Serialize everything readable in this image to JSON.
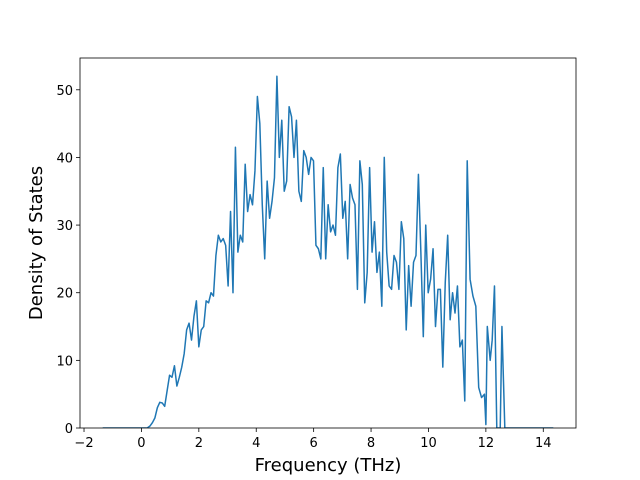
{
  "chart_data": {
    "type": "line",
    "xlabel": "Frequency (THz)",
    "ylabel": "Density of States",
    "color": "#1f77b4",
    "xlim": [
      -2.14,
      15.14
    ],
    "ylim": [
      0,
      54.7
    ],
    "xticks": [
      {
        "value": -2,
        "label": "−2"
      },
      0,
      2,
      4,
      6,
      8,
      10,
      12,
      14
    ],
    "yticks": [
      0,
      10,
      20,
      30,
      40,
      50
    ],
    "x": [
      -1.35,
      0.2,
      0.3,
      0.385,
      0.47,
      0.555,
      0.64,
      0.725,
      0.81,
      0.895,
      0.98,
      1.065,
      1.15,
      1.235,
      1.32,
      1.405,
      1.49,
      1.575,
      1.66,
      1.745,
      1.83,
      1.915,
      2.0,
      2.085,
      2.17,
      2.255,
      2.34,
      2.425,
      2.51,
      2.595,
      2.68,
      2.765,
      2.85,
      2.935,
      3.02,
      3.105,
      3.19,
      3.275,
      3.36,
      3.445,
      3.53,
      3.615,
      3.7,
      3.785,
      3.87,
      3.955,
      4.04,
      4.125,
      4.21,
      4.295,
      4.38,
      4.465,
      4.55,
      4.635,
      4.72,
      4.805,
      4.89,
      4.975,
      5.06,
      5.145,
      5.23,
      5.315,
      5.4,
      5.485,
      5.57,
      5.655,
      5.74,
      5.825,
      5.91,
      5.995,
      6.08,
      6.165,
      6.25,
      6.335,
      6.42,
      6.505,
      6.59,
      6.675,
      6.76,
      6.845,
      6.93,
      7.015,
      7.1,
      7.185,
      7.27,
      7.355,
      7.44,
      7.525,
      7.61,
      7.695,
      7.78,
      7.865,
      7.95,
      8.035,
      8.12,
      8.205,
      8.29,
      8.375,
      8.46,
      8.545,
      8.63,
      8.715,
      8.8,
      8.885,
      8.97,
      9.055,
      9.14,
      9.225,
      9.31,
      9.395,
      9.48,
      9.565,
      9.65,
      9.735,
      9.82,
      9.905,
      9.99,
      10.075,
      10.16,
      10.245,
      10.33,
      10.415,
      10.5,
      10.585,
      10.67,
      10.755,
      10.84,
      10.925,
      11.01,
      11.095,
      11.18,
      11.265,
      11.35,
      11.45,
      11.55,
      11.65,
      11.75,
      11.85,
      11.95,
      12.0,
      12.05,
      12.15,
      12.22,
      12.3,
      12.38,
      12.5,
      12.56,
      12.66,
      14.35
    ],
    "values": [
      0,
      0,
      0.3,
      0.8,
      1.5,
      3,
      3.8,
      3.7,
      3.2,
      5.5,
      7.8,
      7.5,
      9.2,
      6.2,
      7.5,
      9,
      11,
      14.5,
      15.5,
      13,
      16.5,
      18.8,
      12,
      14.5,
      15,
      18.8,
      18.5,
      20,
      19.5,
      25.5,
      28.5,
      27.5,
      28,
      27,
      21,
      32,
      20,
      41.5,
      26,
      28.5,
      27.5,
      39,
      32,
      34.5,
      33,
      38,
      49,
      45,
      33,
      25,
      36.5,
      31,
      33.5,
      37,
      52,
      40,
      45.5,
      35,
      36.5,
      47.5,
      46,
      40,
      45.5,
      35,
      33.5,
      41,
      40,
      37.5,
      40,
      39.5,
      27,
      26.5,
      25,
      38.5,
      25,
      33,
      29,
      30,
      28.5,
      38.5,
      40.5,
      31,
      33.5,
      25,
      36,
      34,
      33,
      20.5,
      39.5,
      36,
      18.5,
      23,
      38.5,
      26,
      30.5,
      23,
      26,
      18,
      40,
      26,
      21,
      20.5,
      25.5,
      24.5,
      20.5,
      30.5,
      28,
      14.5,
      24,
      18,
      24.5,
      25.5,
      37.5,
      26,
      13.5,
      30,
      20,
      22,
      26.5,
      15,
      20.5,
      20.5,
      9,
      21.5,
      28.5,
      16,
      20,
      17,
      21,
      12,
      13,
      4,
      39.5,
      22,
      19.5,
      18,
      6,
      4.5,
      5,
      0.5,
      15,
      10,
      13,
      21,
      0,
      0,
      15,
      0,
      0
    ]
  }
}
